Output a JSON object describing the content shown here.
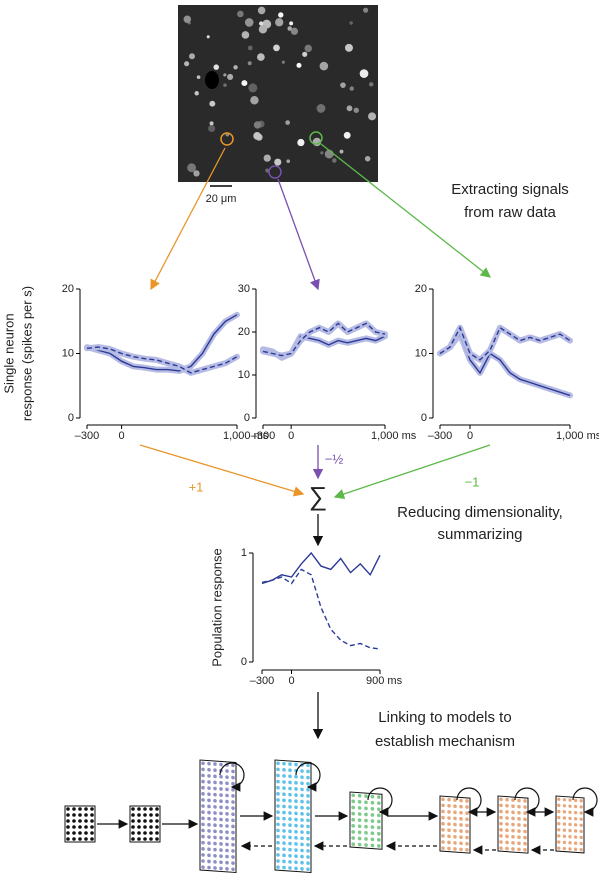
{
  "image": {
    "scale_bar": "20 μm"
  },
  "annotations": {
    "extract": [
      "Extracting signals",
      "from raw data"
    ],
    "reduce": [
      "Reducing dimensionality,",
      "summarizing"
    ],
    "link": [
      "Linking to models to",
      "establish mechanism"
    ]
  },
  "weights": {
    "sum": "∑",
    "labels": [
      "+1",
      "−½",
      "−1"
    ]
  },
  "chart_data": [
    {
      "type": "line",
      "ylabel": [
        "Single neuron",
        "response (spikes per s)"
      ],
      "x": [
        -300,
        -200,
        -100,
        0,
        100,
        200,
        300,
        400,
        500,
        600,
        700,
        800,
        900,
        1000
      ],
      "xlim": [
        -300,
        1000
      ],
      "xticks": [
        {
          "value": -300,
          "label": "–300"
        },
        0,
        {
          "value": 1000,
          "label": "1,000 ms"
        }
      ],
      "ylim": [
        0,
        20
      ],
      "yticks": [
        0,
        10,
        20
      ],
      "band_color": "#b6bbe4",
      "series": [
        {
          "color": "#2b3a96",
          "dash": false,
          "values": [
            11,
            10.5,
            10,
            8.8,
            8,
            7.8,
            7.5,
            7.5,
            7.3,
            8,
            10,
            13,
            15,
            16
          ]
        },
        {
          "color": "#2b3a96",
          "dash": true,
          "values": [
            10.8,
            11,
            10.7,
            10,
            9.5,
            9.2,
            9,
            8.5,
            8,
            7,
            7.5,
            8,
            8.5,
            9.5
          ]
        }
      ]
    },
    {
      "type": "line",
      "x": [
        -300,
        -200,
        -100,
        0,
        100,
        200,
        300,
        400,
        500,
        600,
        700,
        800,
        900,
        1000
      ],
      "xlim": [
        -300,
        1000
      ],
      "xticks": [
        {
          "value": -300,
          "label": "–300"
        },
        0,
        {
          "value": 1000,
          "label": "1,000 ms"
        }
      ],
      "ylim": [
        0,
        30
      ],
      "yticks": [
        0,
        10,
        20,
        30
      ],
      "band_color": "#b6bbe4",
      "series": [
        {
          "color": "#2b3a96",
          "dash": false,
          "values": [
            16,
            15.5,
            14,
            15,
            19,
            18.5,
            18,
            17,
            18,
            17.5,
            18,
            18.5,
            18,
            19
          ]
        },
        {
          "color": "#2b3a96",
          "dash": true,
          "values": [
            15.5,
            15,
            14.5,
            15,
            18,
            20,
            21,
            20,
            22,
            20,
            21,
            22,
            20,
            19.5
          ]
        }
      ]
    },
    {
      "type": "line",
      "x": [
        -300,
        -200,
        -100,
        0,
        100,
        200,
        300,
        400,
        500,
        600,
        700,
        800,
        900,
        1000
      ],
      "xlim": [
        -300,
        1000
      ],
      "xticks": [
        {
          "value": -300,
          "label": "–300"
        },
        0,
        {
          "value": 1000,
          "label": "1,000 ms"
        }
      ],
      "ylim": [
        0,
        20
      ],
      "yticks": [
        0,
        10,
        20
      ],
      "band_color": "#b6bbe4",
      "series": [
        {
          "color": "#2b3a96",
          "dash": false,
          "values": [
            10,
            11,
            13,
            9,
            7,
            10,
            9,
            7,
            6,
            5.5,
            5,
            4.5,
            4,
            3.5
          ]
        },
        {
          "color": "#2b3a96",
          "dash": true,
          "values": [
            10,
            11,
            14,
            10,
            9,
            10.5,
            14,
            13,
            12,
            12.5,
            12,
            12.5,
            13,
            12
          ]
        }
      ]
    },
    {
      "type": "line",
      "ylabel": [
        "Population response"
      ],
      "x": [
        -300,
        -200,
        -100,
        0,
        100,
        200,
        300,
        400,
        500,
        600,
        700,
        800,
        900
      ],
      "xlim": [
        -300,
        900
      ],
      "xticks": [
        {
          "value": -300,
          "label": "–300"
        },
        0,
        {
          "value": 900,
          "label": "900 ms"
        }
      ],
      "ylim": [
        0,
        1
      ],
      "yticks": [
        0,
        1
      ],
      "series": [
        {
          "color": "#2b3a96",
          "dash": false,
          "values": [
            0.72,
            0.75,
            0.8,
            0.78,
            0.9,
            1.0,
            0.88,
            0.85,
            0.95,
            0.82,
            0.9,
            0.8,
            0.98
          ]
        },
        {
          "color": "#2b3a96",
          "dash": true,
          "values": [
            0.73,
            0.75,
            0.78,
            0.72,
            0.85,
            0.8,
            0.5,
            0.3,
            0.2,
            0.15,
            0.17,
            0.13,
            0.12
          ]
        }
      ]
    }
  ]
}
